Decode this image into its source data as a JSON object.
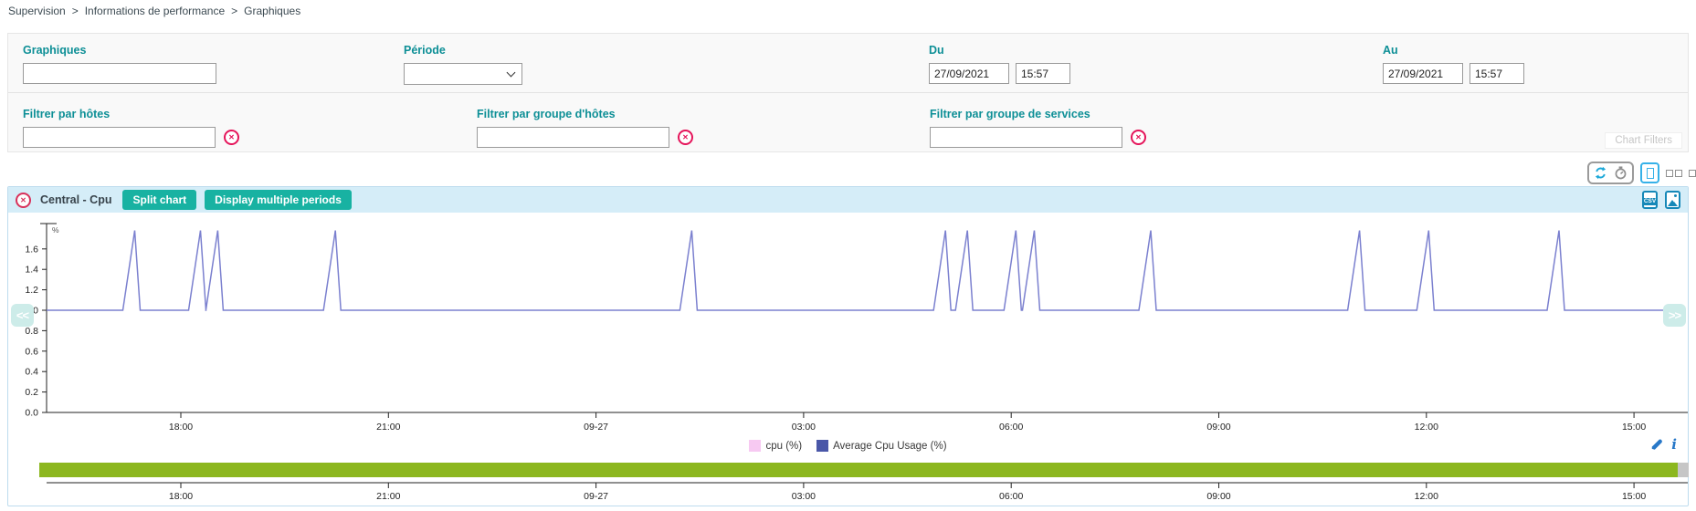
{
  "breadcrumb": {
    "separator": ">",
    "items": [
      "Supervision",
      "Informations de performance",
      "Graphiques"
    ]
  },
  "filters": {
    "graphs": {
      "label": "Graphiques",
      "value": ""
    },
    "period": {
      "label": "Période",
      "value": ""
    },
    "from": {
      "label": "Du",
      "date": "27/09/2021",
      "time": "15:57"
    },
    "to": {
      "label": "Au",
      "date": "27/09/2021",
      "time": "15:57"
    },
    "host": {
      "label": "Filtrer par hôtes",
      "value": ""
    },
    "hostgroup": {
      "label": "Filtrer par groupe d'hôtes",
      "value": ""
    },
    "servicegroup": {
      "label": "Filtrer par groupe de services",
      "value": ""
    },
    "panel_tag": "Chart Filters",
    "clear_icon_glyph": "✕"
  },
  "chart_card": {
    "title": "Central - Cpu",
    "split_button": "Split chart",
    "periods_button": "Display multiple periods",
    "close_glyph": "✕",
    "csv_label": "CSV",
    "info_glyph": "i",
    "pan_left": "<<",
    "pan_right": ">>"
  },
  "chart_data": {
    "type": "line",
    "title": "Central - Cpu",
    "ylabel_unit": "%",
    "ylim": [
      0,
      1.8
    ],
    "y_ticks": [
      0.0,
      0.2,
      0.4,
      0.6,
      0.8,
      1.0,
      1.2,
      1.4,
      1.6
    ],
    "x_ticks": [
      "18:00",
      "21:00",
      "09-27",
      "03:00",
      "06:00",
      "09:00",
      "12:00",
      "15:00"
    ],
    "x_tick_interval_hours": 3,
    "grid": false,
    "baseline_value": 1.0,
    "spike_peak_value": 1.78,
    "spike_times": [
      "17:20",
      "18:17",
      "18:32",
      "20:14",
      "01:23",
      "05:03",
      "05:22",
      "06:04",
      "06:20",
      "08:01",
      "11:02",
      "12:02",
      "13:55"
    ],
    "series": [
      {
        "name": "cpu (%)",
        "swatch_color": "#f7c9f2"
      },
      {
        "name": "Average Cpu Usage (%)",
        "swatch_color": "#4a57a8",
        "line_color": "#7b80cf"
      }
    ],
    "legend_position": "bottom-center",
    "timeline": {
      "bar_color": "#8cb71f",
      "cap_color": "#c6c6c6"
    }
  },
  "colors": {
    "label_teal": "#0d8f96",
    "accent_teal": "#18b2a2",
    "header_blue": "#d5edf8",
    "border_blue": "#bddcee",
    "clear_red": "#e5145a",
    "icon_blue": "#1688b8",
    "green_bar": "#8cb71f",
    "line_color": "#7b80cf"
  }
}
